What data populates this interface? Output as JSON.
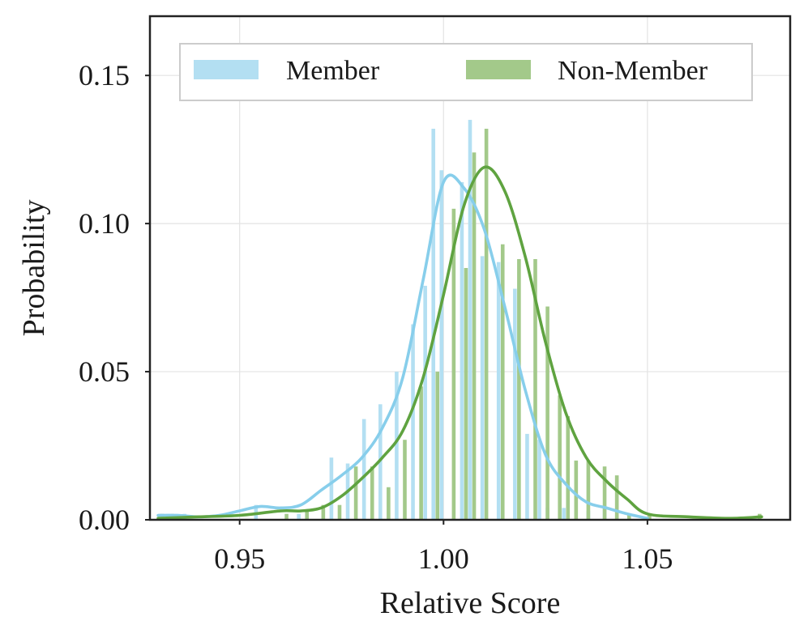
{
  "chart_data": {
    "type": "histogram+kde",
    "title": "",
    "xlabel": "Relative Score",
    "ylabel": "Probability",
    "xlim": [
      0.928,
      1.085
    ],
    "ylim": [
      0,
      0.17
    ],
    "xticks": [
      0.95,
      1.0,
      1.05
    ],
    "xtick_labels": [
      "0.95",
      "1.00",
      "1.05"
    ],
    "yticks": [
      0.0,
      0.05,
      0.1,
      0.15
    ],
    "ytick_labels": [
      "0.00",
      "0.05",
      "0.10",
      "0.15"
    ],
    "grid": true,
    "legend": {
      "position": "top",
      "entries": [
        "Member",
        "Non-Member"
      ]
    },
    "series": [
      {
        "name": "Member",
        "color": "#87ceeb",
        "bar_color": "#b3dff2",
        "bars": [
          [
            0.9305,
            0.002
          ],
          [
            0.9325,
            0.002
          ],
          [
            0.9345,
            0.002
          ],
          [
            0.9365,
            0.002
          ],
          [
            0.954,
            0.005
          ],
          [
            0.9645,
            0.002
          ],
          [
            0.9725,
            0.021
          ],
          [
            0.9765,
            0.019
          ],
          [
            0.9805,
            0.034
          ],
          [
            0.9845,
            0.039
          ],
          [
            0.9885,
            0.05
          ],
          [
            0.9925,
            0.066
          ],
          [
            0.9955,
            0.079
          ],
          [
            0.9975,
            0.132
          ],
          [
            0.9995,
            0.118
          ],
          [
            1.0045,
            0.114
          ],
          [
            1.0065,
            0.135
          ],
          [
            1.0095,
            0.089
          ],
          [
            1.0135,
            0.087
          ],
          [
            1.0175,
            0.078
          ],
          [
            1.0205,
            0.029
          ],
          [
            1.0235,
            0.027
          ],
          [
            1.0255,
            0.004
          ],
          [
            1.0295,
            0.004
          ],
          [
            1.0355,
            0.003
          ],
          [
            1.0395,
            0.004
          ]
        ],
        "kde": [
          [
            0.93,
            0.0015
          ],
          [
            0.935,
            0.0015
          ],
          [
            0.94,
            0.001
          ],
          [
            0.945,
            0.0015
          ],
          [
            0.95,
            0.003
          ],
          [
            0.955,
            0.0045
          ],
          [
            0.96,
            0.004
          ],
          [
            0.965,
            0.005
          ],
          [
            0.97,
            0.01
          ],
          [
            0.975,
            0.015
          ],
          [
            0.98,
            0.021
          ],
          [
            0.985,
            0.031
          ],
          [
            0.99,
            0.048
          ],
          [
            0.995,
            0.081
          ],
          [
            1.0,
            0.114
          ],
          [
            1.005,
            0.112
          ],
          [
            1.01,
            0.098
          ],
          [
            1.015,
            0.072
          ],
          [
            1.02,
            0.044
          ],
          [
            1.025,
            0.022
          ],
          [
            1.03,
            0.012
          ],
          [
            1.035,
            0.006
          ],
          [
            1.04,
            0.004
          ],
          [
            1.045,
            0.002
          ],
          [
            1.05,
            0.0005
          ]
        ]
      },
      {
        "name": "Non-Member",
        "color": "#5fa340",
        "bar_color": "#a3c98a",
        "bars": [
          [
            0.931,
            0.002
          ],
          [
            0.9335,
            0.002
          ],
          [
            0.9615,
            0.002
          ],
          [
            0.9665,
            0.003
          ],
          [
            0.9705,
            0.005
          ],
          [
            0.9745,
            0.005
          ],
          [
            0.9785,
            0.018
          ],
          [
            0.9825,
            0.018
          ],
          [
            0.9865,
            0.011
          ],
          [
            0.9905,
            0.027
          ],
          [
            0.9945,
            0.045
          ],
          [
            0.9985,
            0.05
          ],
          [
            1.0025,
            0.105
          ],
          [
            1.0055,
            0.085
          ],
          [
            1.0075,
            0.124
          ],
          [
            1.0105,
            0.132
          ],
          [
            1.0145,
            0.093
          ],
          [
            1.0185,
            0.088
          ],
          [
            1.0225,
            0.088
          ],
          [
            1.0255,
            0.072
          ],
          [
            1.0285,
            0.042
          ],
          [
            1.0305,
            0.035
          ],
          [
            1.0325,
            0.02
          ],
          [
            1.0355,
            0.02
          ],
          [
            1.0395,
            0.018
          ],
          [
            1.0425,
            0.015
          ],
          [
            1.0455,
            0.002
          ],
          [
            1.0505,
            0.002
          ],
          [
            1.0775,
            0.002
          ]
        ],
        "kde": [
          [
            0.93,
            0.0005
          ],
          [
            0.94,
            0.001
          ],
          [
            0.95,
            0.0015
          ],
          [
            0.96,
            0.003
          ],
          [
            0.965,
            0.003
          ],
          [
            0.97,
            0.004
          ],
          [
            0.975,
            0.008
          ],
          [
            0.98,
            0.014
          ],
          [
            0.985,
            0.021
          ],
          [
            0.99,
            0.03
          ],
          [
            0.995,
            0.048
          ],
          [
            1.0,
            0.076
          ],
          [
            1.005,
            0.106
          ],
          [
            1.01,
            0.119
          ],
          [
            1.015,
            0.111
          ],
          [
            1.02,
            0.089
          ],
          [
            1.025,
            0.06
          ],
          [
            1.03,
            0.036
          ],
          [
            1.035,
            0.021
          ],
          [
            1.04,
            0.013
          ],
          [
            1.045,
            0.007
          ],
          [
            1.05,
            0.002
          ],
          [
            1.06,
            0.001
          ],
          [
            1.07,
            0.0005
          ],
          [
            1.078,
            0.001
          ]
        ]
      }
    ]
  }
}
